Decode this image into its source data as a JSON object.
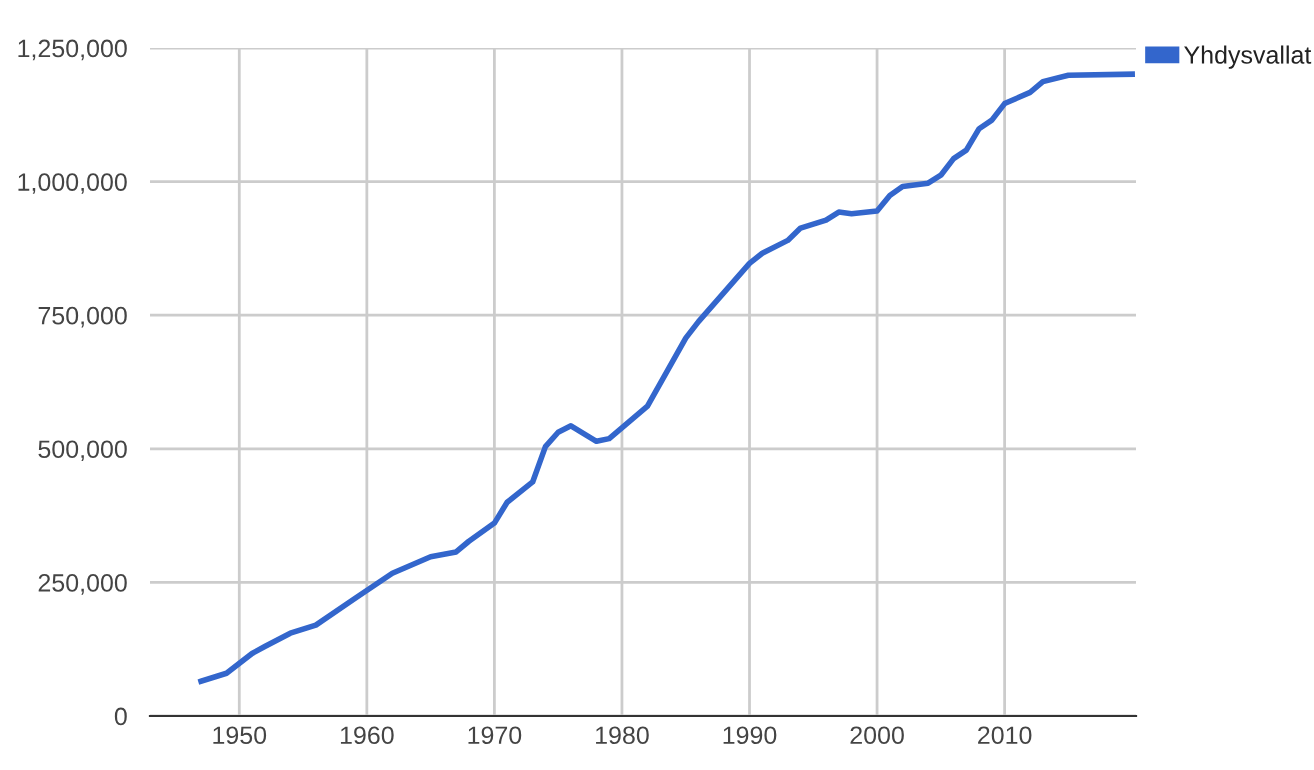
{
  "chart_data": {
    "type": "line",
    "x": [
      1947,
      1949,
      1951,
      1952,
      1954,
      1956,
      1959,
      1962,
      1965,
      1967,
      1968,
      1970,
      1971,
      1973,
      1974,
      1975,
      1976,
      1978,
      1979,
      1982,
      1985,
      1986,
      1990,
      1991,
      1993,
      1994,
      1996,
      1997,
      1998,
      2000,
      2001,
      2002,
      2004,
      2005,
      2006,
      2007,
      2008,
      2009,
      2010,
      2012,
      2013,
      2015,
      2020
    ],
    "series": [
      {
        "name": "Yhdysvallat",
        "color": "#3366cc",
        "values": [
          65000,
          80000,
          117000,
          130000,
          155000,
          170000,
          219000,
          267000,
          298000,
          307000,
          327000,
          361000,
          400000,
          438000,
          504000,
          531000,
          543000,
          514000,
          519000,
          580000,
          707000,
          738000,
          847000,
          866000,
          890000,
          913000,
          928000,
          943000,
          940000,
          945000,
          974000,
          991000,
          997000,
          1012000,
          1043000,
          1059000,
          1099000,
          1115000,
          1146000,
          1167000,
          1187000,
          1199000,
          1201000
        ]
      }
    ],
    "xlim": [
      1943,
      2020.3
    ],
    "xticks": [
      1950,
      1960,
      1970,
      1980,
      1990,
      2000,
      2010
    ],
    "ylim": [
      0,
      1250000
    ],
    "yticks": [
      {
        "value": 0,
        "label": "0"
      },
      {
        "value": 250000,
        "label": "250,000"
      },
      {
        "value": 500000,
        "label": "500,000"
      },
      {
        "value": 750000,
        "label": "750,000"
      },
      {
        "value": 1000000,
        "label": "1,000,000"
      },
      {
        "value": 1250000,
        "label": "1,250,000"
      }
    ],
    "grid": true,
    "legend": "top right",
    "marker": "none",
    "line_style": "solid"
  }
}
